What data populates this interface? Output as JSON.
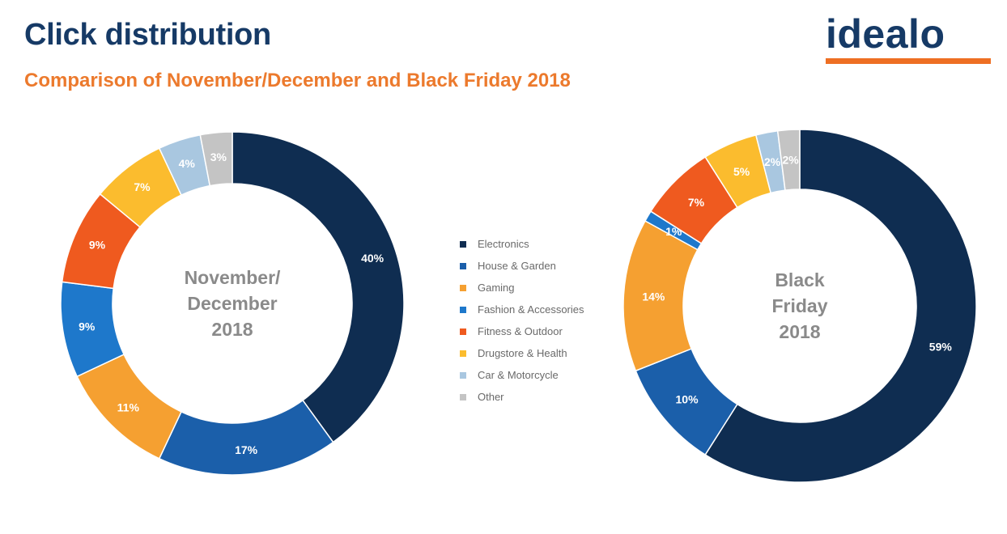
{
  "header": {
    "title": "Click distribution",
    "subtitle": "Comparison of November/December and Black Friday 2018",
    "logo_text": "idealo"
  },
  "colors": {
    "Electronics": "#0f2d51",
    "House & Garden": "#1b5faa",
    "Gaming": "#f5a031",
    "Fashion & Accessories": "#1e78cb",
    "Fitness & Outdoor": "#ef5a1f",
    "Drugstore & Health": "#fbbc2e",
    "Car & Motorcycle": "#a9c7e0",
    "Other": "#c4c4c4"
  },
  "chart_data": [
    {
      "type": "pie",
      "center_label": [
        "November/",
        "December",
        "2018"
      ],
      "slices": [
        {
          "category": "Electronics",
          "value": 40,
          "label": "40%"
        },
        {
          "category": "House & Garden",
          "value": 17,
          "label": "17%"
        },
        {
          "category": "Gaming",
          "value": 11,
          "label": "11%"
        },
        {
          "category": "Fashion & Accessories",
          "value": 9,
          "label": "9%"
        },
        {
          "category": "Fitness & Outdoor",
          "value": 9,
          "label": "9%"
        },
        {
          "category": "Drugstore & Health",
          "value": 7,
          "label": "7%"
        },
        {
          "category": "Car & Motorcycle",
          "value": 4,
          "label": "4%"
        },
        {
          "category": "Other",
          "value": 3,
          "label": "3%"
        }
      ]
    },
    {
      "type": "pie",
      "center_label": [
        "Black",
        "Friday",
        "2018"
      ],
      "slices": [
        {
          "category": "Electronics",
          "value": 59,
          "label": "59%"
        },
        {
          "category": "House & Garden",
          "value": 10,
          "label": "10%"
        },
        {
          "category": "Gaming",
          "value": 14,
          "label": "14%"
        },
        {
          "category": "Fashion & Accessories",
          "value": 1,
          "label": "1%"
        },
        {
          "category": "Fitness & Outdoor",
          "value": 7,
          "label": "7%"
        },
        {
          "category": "Drugstore & Health",
          "value": 5,
          "label": "5%"
        },
        {
          "category": "Car & Motorcycle",
          "value": 2,
          "label": "2%"
        },
        {
          "category": "Other",
          "value": 2,
          "label": "2%"
        }
      ]
    }
  ],
  "legend": {
    "placement": "center",
    "items": [
      "Electronics",
      "House & Garden",
      "Gaming",
      "Fashion & Accessories",
      "Fitness & Outdoor",
      "Drugstore & Health",
      "Car & Motorcycle",
      "Other"
    ]
  }
}
